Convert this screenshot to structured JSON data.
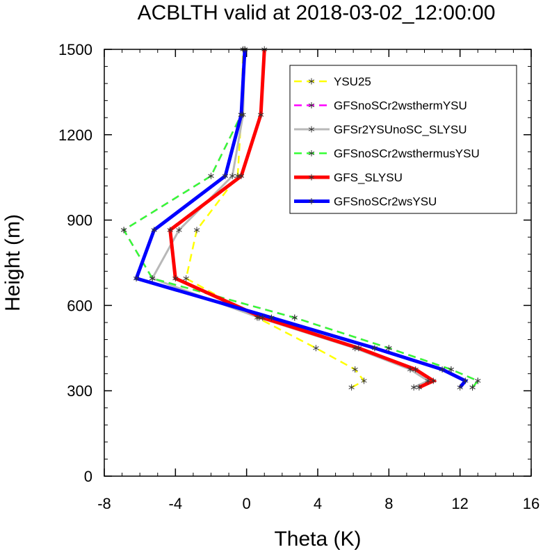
{
  "chart_data": {
    "type": "line",
    "title": "ACBLTH valid at 2018-03-02_12:00:00",
    "xlabel": "Theta (K)",
    "ylabel": "Height (m)",
    "xlim": [
      -8,
      16
    ],
    "ylim": [
      0,
      1500
    ],
    "xticks": [
      -8,
      -4,
      0,
      4,
      8,
      12,
      16
    ],
    "yticks": [
      0,
      300,
      600,
      900,
      1200,
      1500
    ],
    "xtick_labels": [
      "-8",
      "-4",
      "0",
      "4",
      "8",
      "12",
      "16"
    ],
    "ytick_labels": [
      "0",
      "300",
      "600",
      "900",
      "1200",
      "1500"
    ],
    "legend_position": "top-right",
    "grid": false,
    "series": [
      {
        "name": "YSU25",
        "color": "#ffff00",
        "dash": "dashed",
        "x": [
          5.9,
          6.6,
          6.1,
          3.9,
          0.6,
          -3.4,
          -2.8,
          -0.5,
          -0.3,
          -0.2
        ],
        "y": [
          312,
          335,
          375,
          450,
          557,
          695,
          865,
          1055,
          1270,
          1500
        ]
      },
      {
        "name": "GFSnoSCr2wsthermYSU",
        "color": "#ff00ff",
        "dash": "dashed",
        "x": [
          12.7,
          13.0,
          11.5,
          8.0,
          2.7,
          -5.3,
          -6.9,
          -2.0,
          -0.3,
          -0.1
        ],
        "y": [
          312,
          335,
          375,
          450,
          557,
          695,
          865,
          1055,
          1270,
          1500
        ]
      },
      {
        "name": "GFSr2YSUnoSC_SLYSU",
        "color": "#b8b8b8",
        "dash": "solid",
        "x": [
          9.4,
          10.2,
          9.2,
          6.1,
          0.7,
          -5.3,
          -3.8,
          -0.8,
          -0.2,
          -0.1
        ],
        "y": [
          312,
          335,
          375,
          450,
          557,
          695,
          865,
          1055,
          1270,
          1500
        ]
      },
      {
        "name": "GFSnoSCr2wsthermusYSU",
        "color": "#33ff33",
        "dash": "dashed",
        "x": [
          12.7,
          13.0,
          11.5,
          8.0,
          2.7,
          -5.3,
          -6.9,
          -2.0,
          -0.3,
          -0.1
        ],
        "y": [
          312,
          335,
          375,
          450,
          557,
          695,
          865,
          1055,
          1270,
          1500
        ]
      },
      {
        "name": "GFS_SLYSU",
        "color": "#ff0000",
        "dash": "solid",
        "x": [
          9.7,
          10.5,
          9.5,
          6.3,
          0.9,
          -4.0,
          -4.3,
          -0.3,
          0.8,
          1.0
        ],
        "y": [
          312,
          335,
          375,
          450,
          557,
          695,
          865,
          1055,
          1270,
          1500
        ]
      },
      {
        "name": "GFSnoSCr2wsYSU",
        "color": "#0000ff",
        "dash": "solid",
        "x": [
          12.0,
          12.3,
          11.0,
          7.2,
          1.4,
          -6.2,
          -5.2,
          -1.2,
          -0.3,
          -0.1
        ],
        "y": [
          312,
          335,
          375,
          450,
          557,
          695,
          865,
          1055,
          1270,
          1500
        ]
      }
    ]
  }
}
